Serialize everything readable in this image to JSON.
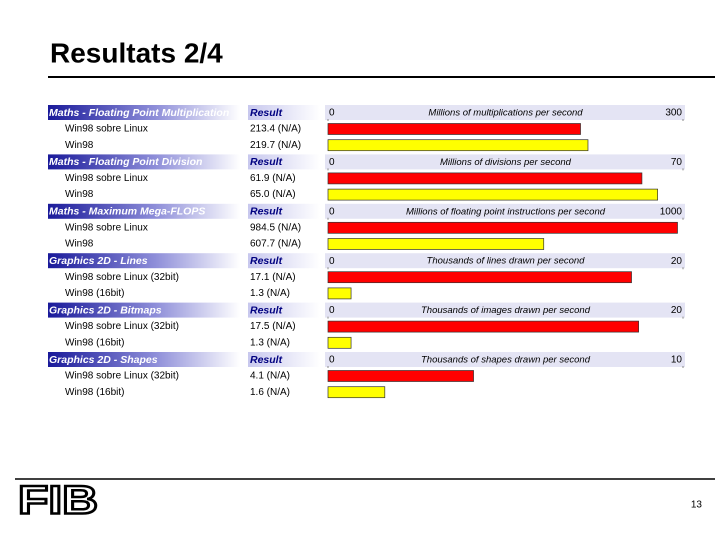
{
  "slide_title": "Resultats 2/4",
  "page_number": "13",
  "logo": "FIB",
  "chart_data": [
    {
      "type": "bar",
      "title": "Maths - Floating Point Multiplication",
      "value_header": "Result",
      "axis_label": "Millions of multiplications per second",
      "categories": [
        "Win98 sobre Linux",
        "Win98"
      ],
      "values": [
        213.4,
        219.7
      ],
      "value_labels": [
        "213.4 (N/A)",
        "219.7 (N/A)"
      ],
      "colors": [
        "#ff0000",
        "#ffff00"
      ],
      "xlim": [
        0,
        300
      ],
      "xticks": [
        0,
        300
      ]
    },
    {
      "type": "bar",
      "title": "Maths - Floating Point Division",
      "value_header": "Result",
      "axis_label": "Millions of divisions per second",
      "categories": [
        "Win98 sobre Linux",
        "Win98"
      ],
      "values": [
        61.9,
        65.0
      ],
      "value_labels": [
        "61.9 (N/A)",
        "65.0 (N/A)"
      ],
      "colors": [
        "#ff0000",
        "#ffff00"
      ],
      "xlim": [
        0,
        70
      ],
      "xticks": [
        0,
        70
      ]
    },
    {
      "type": "bar",
      "title": "Maths - Maximum Mega-FLOPS",
      "value_header": "Result",
      "axis_label": "Millions of floating point instructions per second",
      "categories": [
        "Win98 sobre Linux",
        "Win98"
      ],
      "values": [
        984.5,
        607.7
      ],
      "value_labels": [
        "984.5 (N/A)",
        "607.7 (N/A)"
      ],
      "colors": [
        "#ff0000",
        "#ffff00"
      ],
      "xlim": [
        0,
        1000
      ],
      "xticks": [
        0,
        1000
      ]
    },
    {
      "type": "bar",
      "title": "Graphics 2D - Lines",
      "value_header": "Result",
      "axis_label": "Thousands of lines drawn per second",
      "categories": [
        "Win98 sobre Linux (32bit)",
        "Win98 (16bit)"
      ],
      "values": [
        17.1,
        1.3
      ],
      "value_labels": [
        "17.1 (N/A)",
        "1.3 (N/A)"
      ],
      "colors": [
        "#ff0000",
        "#ffff00"
      ],
      "xlim": [
        0,
        20
      ],
      "xticks": [
        0,
        20
      ]
    },
    {
      "type": "bar",
      "title": "Graphics 2D - Bitmaps",
      "value_header": "Result",
      "axis_label": "Thousands of images drawn per second",
      "categories": [
        "Win98 sobre Linux (32bit)",
        "Win98 (16bit)"
      ],
      "values": [
        17.5,
        1.3
      ],
      "value_labels": [
        "17.5 (N/A)",
        "1.3 (N/A)"
      ],
      "colors": [
        "#ff0000",
        "#ffff00"
      ],
      "xlim": [
        0,
        20
      ],
      "xticks": [
        0,
        20
      ]
    },
    {
      "type": "bar",
      "title": "Graphics 2D - Shapes",
      "value_header": "Result",
      "axis_label": "Thousands of shapes drawn per second",
      "categories": [
        "Win98 sobre Linux (32bit)",
        "Win98 (16bit)"
      ],
      "values": [
        4.1,
        1.6
      ],
      "value_labels": [
        "4.1 (N/A)",
        "1.6 (N/A)"
      ],
      "colors": [
        "#ff0000",
        "#ffff00"
      ],
      "xlim": [
        0,
        10
      ],
      "xticks": [
        0,
        10
      ]
    }
  ]
}
